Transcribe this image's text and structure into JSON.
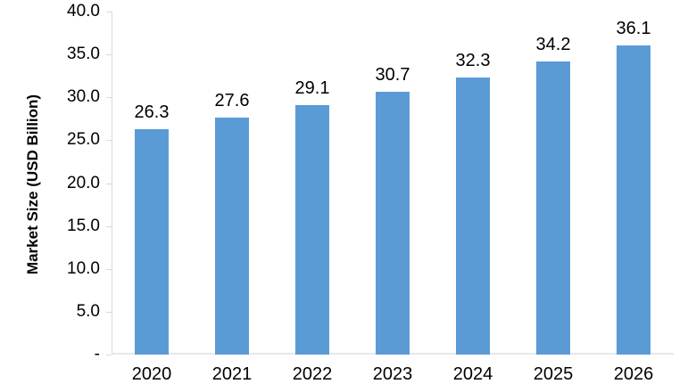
{
  "chart_data": {
    "type": "bar",
    "title": "",
    "categories": [
      "2020",
      "2021",
      "2022",
      "2023",
      "2024",
      "2025",
      "2026"
    ],
    "values": [
      26.3,
      27.6,
      29.1,
      30.7,
      32.3,
      34.2,
      36.1
    ],
    "value_labels": [
      "26.3",
      "27.6",
      "29.1",
      "30.7",
      "32.3",
      "34.2",
      "36.1"
    ],
    "xlabel": "",
    "ylabel": "Market Size (USD Billion)",
    "ylim": [
      0,
      40
    ],
    "ytick_step": 5,
    "ytick_labels_top_to_bottom": [
      "40.0",
      "35.0",
      "30.0",
      "25.0",
      "20.0",
      "15.0",
      "10.0",
      "5.0",
      "-"
    ],
    "grid": "off",
    "legend": "none",
    "bar_color": "#5b9bd5",
    "axis_color": "#d9d9d9",
    "text_color": "#000000"
  }
}
